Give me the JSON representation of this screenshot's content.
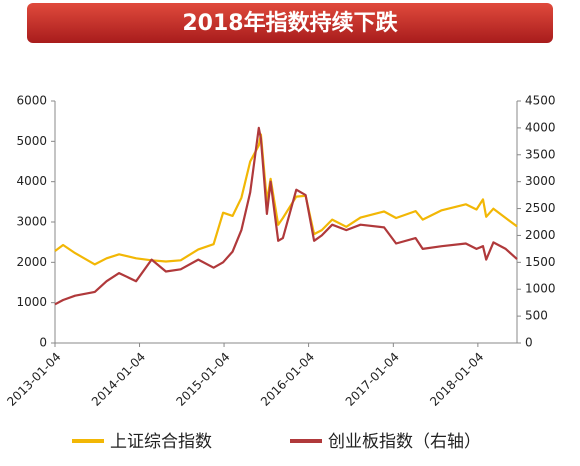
{
  "chart_data": {
    "type": "line",
    "title": "2018年指数持续下跌",
    "x": [
      "2013-01-04",
      "2013-02-08",
      "2013-04-01",
      "2013-06-25",
      "2013-08-15",
      "2013-10-08",
      "2013-12-20",
      "2014-02-25",
      "2014-04-28",
      "2014-07-01",
      "2014-09-15",
      "2014-11-20",
      "2014-12-31",
      "2015-02-10",
      "2015-03-20",
      "2015-04-27",
      "2015-06-03",
      "2015-06-12",
      "2015-07-08",
      "2015-07-24",
      "2015-08-26",
      "2015-09-15",
      "2015-11-12",
      "2015-12-22",
      "2016-01-28",
      "2016-03-01",
      "2016-04-15",
      "2016-06-15",
      "2016-08-15",
      "2016-11-25",
      "2017-01-16",
      "2017-04-10",
      "2017-05-11",
      "2017-08-01",
      "2017-11-13",
      "2017-12-29",
      "2018-01-26",
      "2018-02-09",
      "2018-03-12",
      "2018-05-04",
      "2018-06-22"
    ],
    "series": [
      {
        "name": "上证综合指数",
        "color": "#f2b705",
        "values": [
          2280,
          2430,
          2230,
          1950,
          2100,
          2200,
          2100,
          2050,
          2020,
          2050,
          2320,
          2450,
          3230,
          3150,
          3600,
          4500,
          4900,
          5170,
          3510,
          4070,
          2930,
          3100,
          3630,
          3650,
          2700,
          2800,
          3060,
          2880,
          3110,
          3260,
          3100,
          3270,
          3060,
          3290,
          3440,
          3310,
          3560,
          3130,
          3330,
          3100,
          2890
        ]
      },
      {
        "name": "创业板指数（右轴）",
        "color": "#b0393b",
        "axis": "y2",
        "values": [
          720,
          800,
          880,
          950,
          1150,
          1300,
          1150,
          1550,
          1330,
          1370,
          1550,
          1400,
          1500,
          1700,
          2100,
          2800,
          4000,
          3800,
          2400,
          3000,
          1900,
          1950,
          2850,
          2750,
          1900,
          2000,
          2200,
          2100,
          2200,
          2150,
          1850,
          1950,
          1750,
          1800,
          1850,
          1750,
          1800,
          1550,
          1870,
          1750,
          1560
        ]
      }
    ],
    "xlim": [
      "2013-01-04",
      "2018-06-22"
    ],
    "xticks": [
      "2013-01-04",
      "2014-01-04",
      "2015-01-04",
      "2016-01-04",
      "2017-01-04",
      "2018-01-04"
    ],
    "ylim": [
      0,
      6000
    ],
    "yticks": [
      0,
      1000,
      2000,
      3000,
      4000,
      5000,
      6000
    ],
    "y2lim": [
      0,
      4500
    ],
    "y2ticks": [
      0,
      500,
      1000,
      1500,
      2000,
      2500,
      3000,
      3500,
      4000,
      4500
    ],
    "grid": false
  }
}
